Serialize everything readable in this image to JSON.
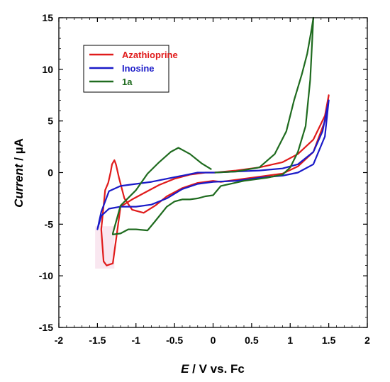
{
  "chart_data": {
    "type": "line",
    "xlabel_italic": "E",
    "xlabel_rest": " / V vs. Fc",
    "ylabel_italic": "Current",
    "ylabel_rest": " / µA",
    "xlim": [
      -2,
      2
    ],
    "ylim": [
      -15,
      15
    ],
    "xticks": [
      -2,
      -1.5,
      -1,
      -0.5,
      0,
      0.5,
      1,
      1.5,
      2
    ],
    "xtick_labels": [
      "-2",
      "-1.5",
      "-1",
      "-0.5",
      "0",
      "0.5",
      "1",
      "1.5",
      "2"
    ],
    "yticks": [
      -15,
      -10,
      -5,
      0,
      5,
      10,
      15
    ],
    "ytick_labels": [
      "-15",
      "-10",
      "-5",
      "0",
      "5",
      "10",
      "15"
    ],
    "grid": false,
    "legend_position": "top-left",
    "series": [
      {
        "name": "Azathioprine",
        "color": "#e01b1b",
        "x": [
          0.02,
          0.3,
          0.6,
          0.9,
          1.1,
          1.3,
          1.45,
          1.5,
          1.45,
          1.3,
          1.1,
          0.9,
          0.6,
          0.3,
          0.1,
          0.0,
          -0.2,
          -0.4,
          -0.6,
          -0.75,
          -0.9,
          -1.05,
          -1.15,
          -1.22,
          -1.26,
          -1.28,
          -1.31,
          -1.33,
          -1.36,
          -1.4,
          -1.45,
          -1.42,
          -1.38,
          -1.3,
          -1.2,
          -1.05,
          -0.9,
          -0.7,
          -0.5,
          -0.3,
          -0.1,
          0.0,
          0.02
        ],
        "y": [
          0.0,
          0.2,
          0.5,
          1.0,
          1.8,
          3.2,
          5.5,
          7.5,
          5.0,
          2.0,
          0.6,
          -0.1,
          -0.4,
          -0.7,
          -0.9,
          -0.8,
          -1.0,
          -1.5,
          -2.3,
          -3.2,
          -3.9,
          -3.6,
          -2.5,
          -0.5,
          0.8,
          1.2,
          0.8,
          0.0,
          -1.0,
          -1.7,
          -5.5,
          -8.6,
          -9.0,
          -8.8,
          -3.3,
          -2.6,
          -2.0,
          -1.2,
          -0.6,
          -0.2,
          0.0,
          0.0,
          0.0
        ]
      },
      {
        "name": "Inosine",
        "color": "#1a1ac8",
        "x": [
          0.02,
          0.3,
          0.6,
          0.9,
          1.1,
          1.3,
          1.42,
          1.5,
          1.45,
          1.3,
          1.1,
          0.9,
          0.6,
          0.3,
          0.0,
          -0.2,
          -0.4,
          -0.6,
          -0.8,
          -1.0,
          -1.2,
          -1.35,
          -1.45,
          -1.5,
          -1.45,
          -1.35,
          -1.2,
          -1.0,
          -0.8,
          -0.6,
          -0.4,
          -0.2,
          0.0,
          0.02
        ],
        "y": [
          0.0,
          0.1,
          0.2,
          0.4,
          0.8,
          2.0,
          4.0,
          7.0,
          3.5,
          0.8,
          0.0,
          -0.3,
          -0.5,
          -0.8,
          -0.9,
          -1.1,
          -1.6,
          -2.5,
          -3.1,
          -3.3,
          -3.3,
          -3.5,
          -4.2,
          -5.5,
          -3.8,
          -1.8,
          -1.3,
          -1.1,
          -0.9,
          -0.6,
          -0.3,
          0.0,
          0.0,
          0.0
        ]
      },
      {
        "name": "1a",
        "color": "#1f6b1f",
        "x": [
          0.02,
          0.3,
          0.6,
          0.8,
          0.95,
          1.05,
          1.15,
          1.22,
          1.28,
          1.3,
          1.26,
          1.2,
          1.1,
          1.0,
          0.9,
          0.7,
          0.4,
          0.1,
          0.0,
          -0.1,
          -0.2,
          -0.3,
          -0.4,
          -0.5,
          -0.6,
          -0.75,
          -0.85,
          -1.0,
          -1.1,
          -1.2,
          -1.3,
          -1.3,
          -1.2,
          -1.0,
          -0.85,
          -0.7,
          -0.55,
          -0.45,
          -0.3,
          -0.15,
          -0.02
        ],
        "y": [
          0.0,
          0.1,
          0.5,
          1.8,
          4.0,
          7.0,
          9.5,
          11.5,
          14.0,
          15.0,
          9.0,
          4.5,
          2.0,
          0.5,
          -0.2,
          -0.5,
          -0.8,
          -1.3,
          -2.2,
          -2.3,
          -2.5,
          -2.6,
          -2.6,
          -2.8,
          -3.3,
          -4.7,
          -5.6,
          -5.5,
          -5.5,
          -5.9,
          -6.0,
          -5.9,
          -3.2,
          -1.7,
          -0.1,
          1.0,
          2.0,
          2.4,
          1.8,
          0.9,
          0.3
        ]
      }
    ]
  }
}
